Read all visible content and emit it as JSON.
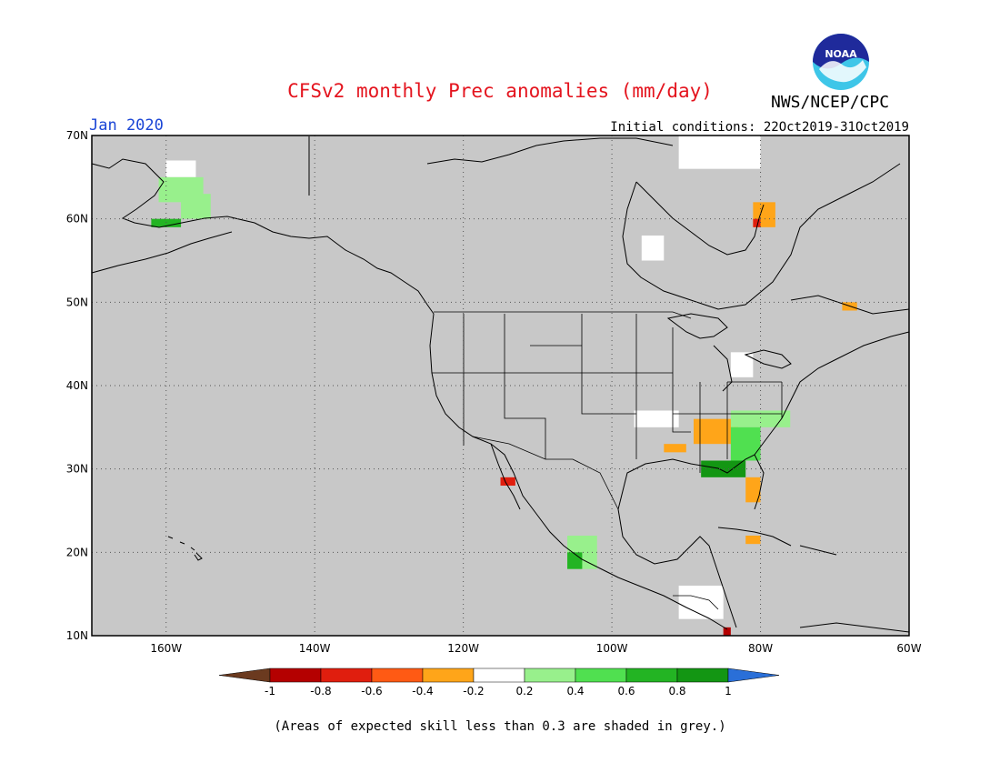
{
  "title": "CFSv2 monthly Prec anomalies (mm/day)",
  "agency": "NWS/NCEP/CPC",
  "logo_text": "NOAA",
  "valid_month": "Jan 2020",
  "initial_conditions": "Initial conditions: 22Oct2019-31Oct2019",
  "footnote": "(Areas of expected skill less than 0.3 are shaded in grey.)",
  "map": {
    "projection": "lat-lon",
    "lon_range": [
      -170,
      -60
    ],
    "lat_range": [
      10,
      70
    ],
    "background_color": "#c8c8c8",
    "lon_ticks": [
      {
        "value": -160,
        "label": "160W"
      },
      {
        "value": -140,
        "label": "140W"
      },
      {
        "value": -120,
        "label": "120W"
      },
      {
        "value": -100,
        "label": "100W"
      },
      {
        "value": -80,
        "label": "80W"
      },
      {
        "value": -60,
        "label": "60W"
      }
    ],
    "lat_ticks": [
      {
        "value": 70,
        "label": "70N"
      },
      {
        "value": 60,
        "label": "60N"
      },
      {
        "value": 50,
        "label": "50N"
      },
      {
        "value": 40,
        "label": "40N"
      },
      {
        "value": 30,
        "label": "30N"
      },
      {
        "value": 20,
        "label": "20N"
      },
      {
        "value": 10,
        "label": "10N"
      }
    ]
  },
  "colorbar": {
    "labels": [
      "-1",
      "-0.8",
      "-0.6",
      "-0.4",
      "-0.2",
      "0.2",
      "0.4",
      "0.6",
      "0.8",
      "1"
    ],
    "below_color": "#6b3a1f",
    "above_color": "#2a6fd8",
    "bins": [
      {
        "range": [
          -1,
          -0.8
        ],
        "color": "#b40000"
      },
      {
        "range": [
          -0.8,
          -0.6
        ],
        "color": "#e01e0e"
      },
      {
        "range": [
          -0.6,
          -0.4
        ],
        "color": "#ff5a14"
      },
      {
        "range": [
          -0.4,
          -0.2
        ],
        "color": "#ffa519"
      },
      {
        "range": [
          -0.2,
          0.2
        ],
        "color": "#ffffff"
      },
      {
        "range": [
          0.2,
          0.4
        ],
        "color": "#98f08c"
      },
      {
        "range": [
          0.4,
          0.6
        ],
        "color": "#50e050"
      },
      {
        "range": [
          0.6,
          0.8
        ],
        "color": "#23b423"
      },
      {
        "range": [
          0.8,
          1
        ],
        "color": "#139613"
      }
    ]
  },
  "anomaly_patches": [
    {
      "region": "Alaska north",
      "lon": [
        -160,
        -156
      ],
      "lat": [
        65,
        67
      ],
      "value": 0
    },
    {
      "region": "Alaska west",
      "lon": [
        -161,
        -155
      ],
      "lat": [
        62,
        65
      ],
      "value": 0.3
    },
    {
      "region": "Alaska interior",
      "lon": [
        -158,
        -154
      ],
      "lat": [
        60,
        63
      ],
      "value": 0.3
    },
    {
      "region": "Alaska south",
      "lon": [
        -162,
        -158
      ],
      "lat": [
        59,
        60
      ],
      "value": 0.7
    },
    {
      "region": "Hudson Bay west",
      "lon": [
        -96,
        -93
      ],
      "lat": [
        55,
        58
      ],
      "value": 0
    },
    {
      "region": "Arctic islands",
      "lon": [
        -91,
        -80
      ],
      "lat": [
        66,
        70
      ],
      "value": 0
    },
    {
      "region": "Hudson Bay east",
      "lon": [
        -81,
        -78
      ],
      "lat": [
        59,
        62
      ],
      "value": -0.3
    },
    {
      "region": "Hudson Bay east",
      "lon": [
        -81,
        -80
      ],
      "lat": [
        59,
        60
      ],
      "value": -0.7
    },
    {
      "region": "Labrador",
      "lon": [
        -69,
        -67
      ],
      "lat": [
        49,
        50
      ],
      "value": -0.3
    },
    {
      "region": "Great Lakes",
      "lon": [
        -84,
        -81
      ],
      "lat": [
        41,
        44
      ],
      "value": 0
    },
    {
      "region": "Southern Plains",
      "lon": [
        -97,
        -91
      ],
      "lat": [
        35,
        37
      ],
      "value": 0
    },
    {
      "region": "Arkansas",
      "lon": [
        -89,
        -83
      ],
      "lat": [
        33,
        36
      ],
      "value": -0.3
    },
    {
      "region": "Louisiana",
      "lon": [
        -93,
        -90
      ],
      "lat": [
        32,
        33
      ],
      "value": -0.3
    },
    {
      "region": "Carolinas",
      "lon": [
        -84,
        -76
      ],
      "lat": [
        35,
        37
      ],
      "value": 0.3
    },
    {
      "region": "Georgia",
      "lon": [
        -84,
        -80
      ],
      "lat": [
        31,
        35
      ],
      "value": 0.5
    },
    {
      "region": "Gulf Coast",
      "lon": [
        -88,
        -82
      ],
      "lat": [
        29,
        31
      ],
      "value": 0.8
    },
    {
      "region": "Florida",
      "lon": [
        -82,
        -80
      ],
      "lat": [
        26,
        29
      ],
      "value": -0.3
    },
    {
      "region": "Baja California",
      "lon": [
        -115,
        -113
      ],
      "lat": [
        28,
        29
      ],
      "value": -0.7
    },
    {
      "region": "Mexico west",
      "lon": [
        -106,
        -102
      ],
      "lat": [
        18,
        22
      ],
      "value": 0.3
    },
    {
      "region": "Mexico southwest",
      "lon": [
        -106,
        -104
      ],
      "lat": [
        18,
        20
      ],
      "value": 0.7
    },
    {
      "region": "Central America",
      "lon": [
        -91,
        -85
      ],
      "lat": [
        12,
        16
      ],
      "value": 0
    },
    {
      "region": "Costa Rica",
      "lon": [
        -85,
        -84
      ],
      "lat": [
        10,
        11
      ],
      "value": -0.9
    },
    {
      "region": "Cuba",
      "lon": [
        -82,
        -80
      ],
      "lat": [
        21,
        22
      ],
      "value": -0.3
    }
  ]
}
